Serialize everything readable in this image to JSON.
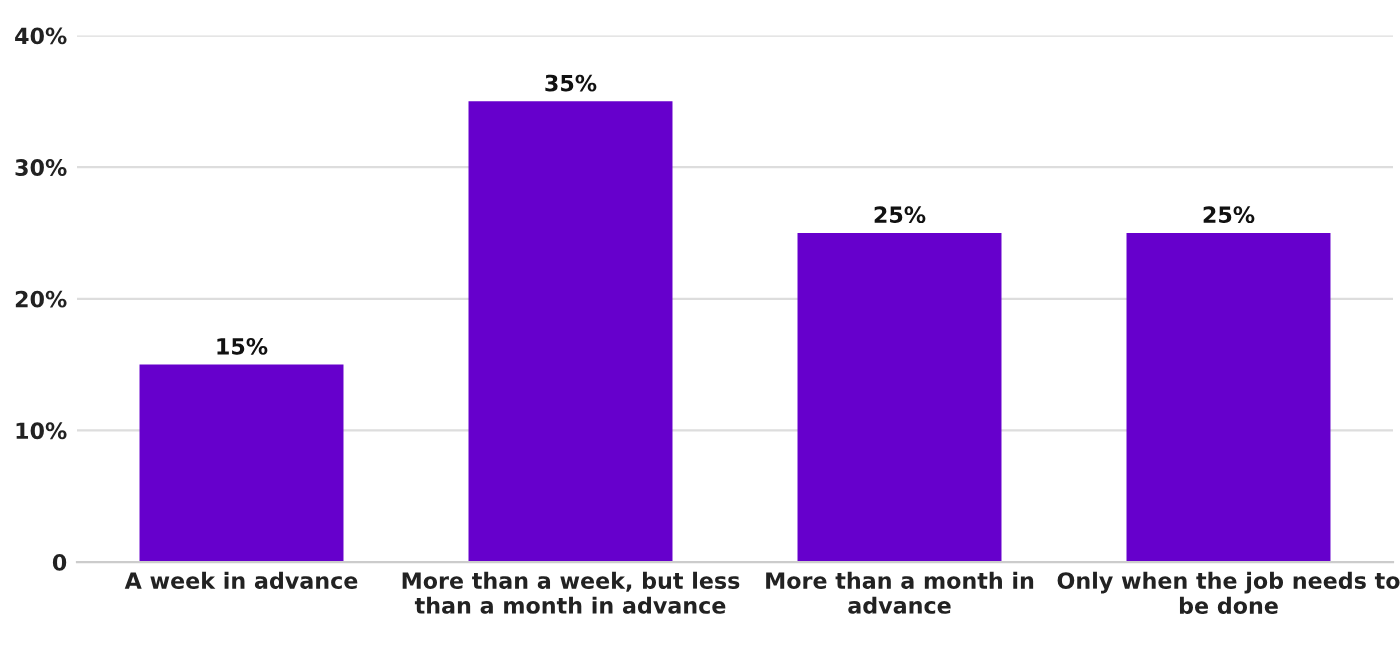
{
  "chart_data": {
    "type": "bar",
    "categories": [
      "A week in advance",
      "More than a week, but less than a month in advance",
      "More than a month in advance",
      "Only when the job needs to be done"
    ],
    "values": [
      15,
      35,
      25,
      25
    ],
    "value_labels": [
      "15%",
      "35%",
      "25%",
      "25%"
    ],
    "color": "#6600cc",
    "ylim": [
      0,
      40
    ],
    "yticks": [
      {
        "value": 0,
        "label": "0"
      },
      {
        "value": 10,
        "label": "10%"
      },
      {
        "value": 20,
        "label": "20%"
      },
      {
        "value": 30,
        "label": "30%"
      },
      {
        "value": 40,
        "label": "40%"
      }
    ],
    "grid": "y",
    "legend": false
  }
}
